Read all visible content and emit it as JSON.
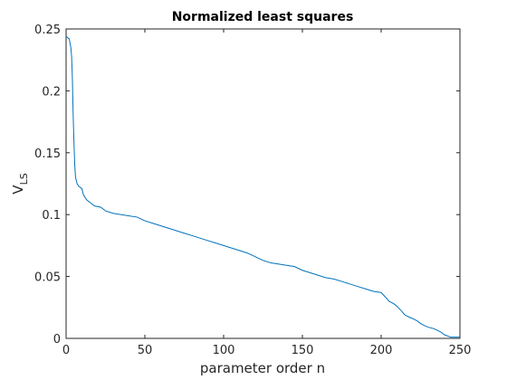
{
  "chart_data": {
    "type": "line",
    "title": "Normalized least squares",
    "xlabel": "parameter order n",
    "ylabel_main": "V",
    "ylabel_sub": "LS",
    "xlim": [
      0,
      250
    ],
    "ylim": [
      0,
      0.25
    ],
    "xticks": [
      0,
      50,
      100,
      150,
      200,
      250
    ],
    "xtick_labels": [
      "0",
      "50",
      "100",
      "150",
      "200",
      "250"
    ],
    "yticks": [
      0,
      0.05,
      0.1,
      0.15,
      0.2,
      0.25
    ],
    "ytick_labels": [
      "0",
      "0.05",
      "0.1",
      "0.15",
      "0.2",
      "0.25"
    ],
    "grid": false,
    "line_color": "#0072BD",
    "series": [
      {
        "x": [
          0,
          2,
          3,
          3.5,
          4,
          4.5,
          5,
          5.5,
          6,
          7,
          8,
          10,
          11,
          13,
          15,
          18,
          22,
          25,
          30,
          40,
          45,
          50,
          55,
          60,
          65,
          70,
          75,
          80,
          85,
          90,
          95,
          100,
          105,
          110,
          115,
          120,
          125,
          130,
          135,
          140,
          145,
          150,
          155,
          160,
          165,
          170,
          175,
          180,
          185,
          190,
          195,
          200,
          203,
          205,
          208,
          210,
          213,
          215,
          218,
          220,
          223,
          225,
          228,
          230,
          233,
          235,
          238,
          240,
          242,
          243,
          244,
          246,
          248,
          250
        ],
        "y": [
          0.244,
          0.242,
          0.235,
          0.228,
          0.21,
          0.18,
          0.158,
          0.14,
          0.13,
          0.125,
          0.123,
          0.121,
          0.116,
          0.112,
          0.11,
          0.107,
          0.106,
          0.103,
          0.101,
          0.099,
          0.098,
          0.095,
          0.093,
          0.091,
          0.089,
          0.087,
          0.085,
          0.083,
          0.081,
          0.079,
          0.077,
          0.075,
          0.073,
          0.071,
          0.069,
          0.066,
          0.063,
          0.061,
          0.06,
          0.059,
          0.058,
          0.055,
          0.053,
          0.051,
          0.049,
          0.048,
          0.046,
          0.044,
          0.042,
          0.04,
          0.038,
          0.037,
          0.033,
          0.03,
          0.028,
          0.026,
          0.022,
          0.019,
          0.017,
          0.016,
          0.014,
          0.012,
          0.01,
          0.009,
          0.008,
          0.007,
          0.005,
          0.003,
          0.002,
          0.0015,
          0.001,
          0.001,
          0.001,
          0.001
        ]
      }
    ]
  }
}
